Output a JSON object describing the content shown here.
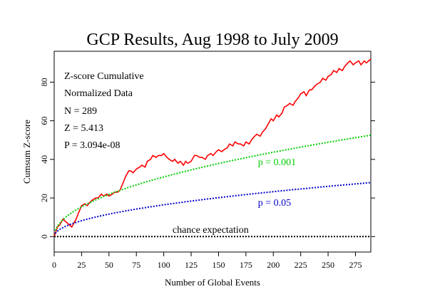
{
  "chart_data": {
    "type": "line",
    "title": "GCP Results, Aug 1998 to July 2009",
    "xlabel": "Number of Global Events",
    "ylabel": "Cumsum Z-score",
    "xlim": [
      0,
      289
    ],
    "ylim": [
      -8,
      96
    ],
    "x_ticks": [
      0,
      25,
      50,
      75,
      100,
      125,
      150,
      175,
      200,
      225,
      250,
      275
    ],
    "y_ticks": [
      0,
      20,
      40,
      60,
      80
    ],
    "stats": [
      "Z-score Cumulative",
      "Normalized Data",
      "N = 289",
      "Z = 5.413",
      "P = 3.094e-08"
    ],
    "series": [
      {
        "name": "Cumsum Z-score",
        "color": "#ff0000",
        "style": "solid",
        "x": [
          0,
          3,
          5,
          8,
          10,
          12,
          14,
          16,
          18,
          20,
          22,
          25,
          28,
          30,
          33,
          35,
          38,
          40,
          43,
          45,
          48,
          50,
          53,
          55,
          58,
          60,
          63,
          65,
          68,
          70,
          72,
          75,
          78,
          80,
          83,
          85,
          88,
          90,
          93,
          95,
          98,
          100,
          103,
          105,
          108,
          110,
          113,
          115,
          118,
          120,
          122,
          125,
          128,
          130,
          133,
          135,
          138,
          140,
          143,
          145,
          148,
          150,
          153,
          155,
          158,
          160,
          163,
          165,
          168,
          170,
          173,
          175,
          178,
          180,
          183,
          185,
          188,
          190,
          193,
          195,
          198,
          200,
          203,
          205,
          208,
          210,
          213,
          215,
          218,
          220,
          223,
          225,
          228,
          230,
          233,
          235,
          238,
          240,
          243,
          245,
          248,
          250,
          253,
          255,
          258,
          260,
          263,
          265,
          268,
          270,
          273,
          275,
          278,
          280,
          283,
          285,
          287,
          289
        ],
        "y": [
          0,
          5,
          6,
          9,
          8,
          7,
          6,
          5,
          7,
          9,
          12,
          16,
          17,
          16,
          18,
          19,
          20,
          20,
          22,
          21,
          22,
          21,
          22,
          23,
          23,
          24,
          28,
          31,
          34,
          34,
          33,
          35,
          36,
          37,
          36,
          39,
          40,
          42,
          41,
          42,
          42,
          43,
          41,
          40,
          39,
          40,
          38,
          39,
          37,
          39,
          38,
          39,
          42,
          42,
          41,
          41,
          40,
          42,
          43,
          42,
          44,
          45,
          44,
          45,
          46,
          48,
          47,
          49,
          48,
          48,
          47,
          49,
          48,
          50,
          52,
          53,
          52,
          54,
          56,
          58,
          61,
          60,
          63,
          62,
          64,
          67,
          68,
          69,
          68,
          70,
          72,
          74,
          75,
          73,
          76,
          76,
          78,
          79,
          80,
          82,
          81,
          83,
          84,
          86,
          85,
          87,
          86,
          88,
          90,
          91,
          89,
          90,
          91,
          89,
          91,
          90,
          91,
          92
        ]
      },
      {
        "name": "p = 0.001",
        "color": "#00cc00",
        "style": "dotted",
        "sigma": 3.09,
        "label_at": [
          186,
          37
        ]
      },
      {
        "name": "p = 0.05",
        "color": "#0000cc",
        "style": "dotted",
        "sigma": 1.645,
        "label_at": [
          186,
          16
        ]
      },
      {
        "name": "chance expectation",
        "color": "#000000",
        "style": "dotted",
        "constant": 0,
        "label_at": [
          108,
          2
        ]
      }
    ]
  }
}
